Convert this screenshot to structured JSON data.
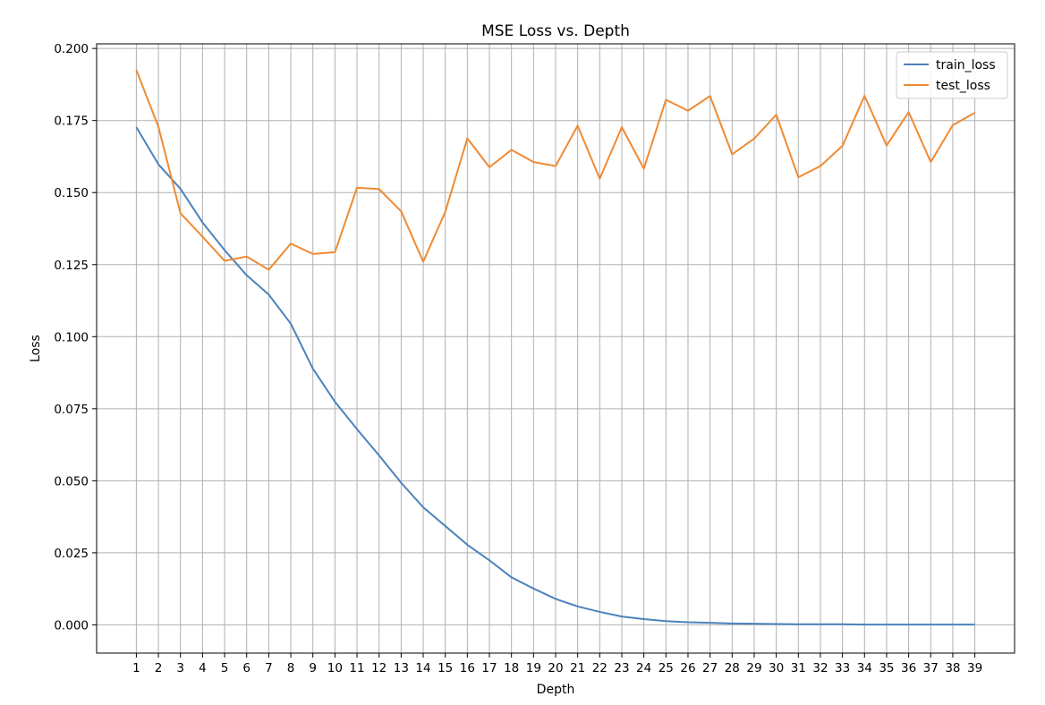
{
  "chart_data": {
    "type": "line",
    "title": "MSE Loss vs. Depth",
    "xlabel": "Depth",
    "ylabel": "Loss",
    "x": [
      1,
      2,
      3,
      4,
      5,
      6,
      7,
      8,
      9,
      10,
      11,
      12,
      13,
      14,
      15,
      16,
      17,
      18,
      19,
      20,
      21,
      22,
      23,
      24,
      25,
      26,
      27,
      28,
      29,
      30,
      31,
      32,
      33,
      34,
      35,
      36,
      37,
      38,
      39
    ],
    "xlim": [
      -0.8,
      40.8
    ],
    "ylim": [
      -0.0098,
      0.2016
    ],
    "yticks": [
      0.0,
      0.025,
      0.05,
      0.075,
      0.1,
      0.125,
      0.15,
      0.175,
      0.2
    ],
    "ytick_labels": [
      "0.000",
      "0.025",
      "0.050",
      "0.075",
      "0.100",
      "0.125",
      "0.150",
      "0.175",
      "0.200"
    ],
    "xtick_labels": [
      "1",
      "2",
      "3",
      "4",
      "5",
      "6",
      "7",
      "8",
      "9",
      "10",
      "11",
      "12",
      "13",
      "14",
      "15",
      "16",
      "17",
      "18",
      "19",
      "20",
      "21",
      "22",
      "23",
      "24",
      "25",
      "26",
      "27",
      "28",
      "29",
      "30",
      "31",
      "32",
      "33",
      "34",
      "35",
      "36",
      "37",
      "38",
      "39"
    ],
    "grid": true,
    "legend_position": "top-right",
    "series": [
      {
        "name": "train_loss",
        "color": "#4c82bc",
        "values": [
          0.1727,
          0.1598,
          0.1513,
          0.1396,
          0.13,
          0.1213,
          0.1146,
          0.1045,
          0.0889,
          0.0774,
          0.0679,
          0.0588,
          0.0493,
          0.0408,
          0.0343,
          0.0278,
          0.0224,
          0.0165,
          0.0126,
          0.009,
          0.0064,
          0.0045,
          0.0029,
          0.002,
          0.0013,
          0.0009,
          0.0007,
          0.0005,
          0.0004,
          0.0003,
          0.0002,
          0.0002,
          0.0002,
          0.0001,
          0.0001,
          0.0001,
          0.0001,
          0.0001,
          0.0001
        ]
      },
      {
        "name": "test_loss",
        "color": "#ef8a33",
        "values": [
          0.1925,
          0.1728,
          0.1428,
          0.1347,
          0.1263,
          0.1278,
          0.1232,
          0.1323,
          0.1287,
          0.1293,
          0.1517,
          0.1512,
          0.1435,
          0.126,
          0.1433,
          0.1688,
          0.1588,
          0.1648,
          0.1606,
          0.1592,
          0.1732,
          0.1548,
          0.1727,
          0.1583,
          0.1822,
          0.1784,
          0.1835,
          0.1633,
          0.1687,
          0.177,
          0.1553,
          0.1592,
          0.1662,
          0.1836,
          0.1663,
          0.1779,
          0.1606,
          0.1734,
          0.1777
        ]
      }
    ]
  }
}
